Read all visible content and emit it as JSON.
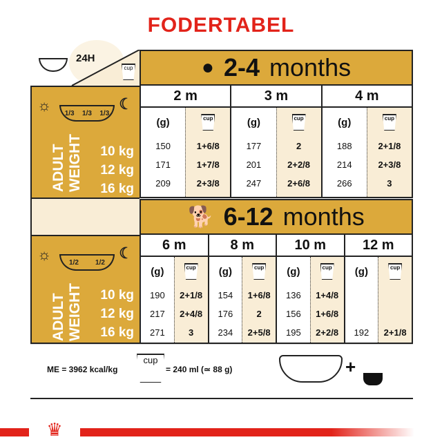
{
  "title": "FODERTABEL",
  "corner": {
    "label": "24H",
    "cup_label": "cup"
  },
  "colors": {
    "gold": "#dca93b",
    "cream": "#f9edd6",
    "red": "#e2231a"
  },
  "sections": [
    {
      "range_num": "2-4",
      "range_word": "months",
      "icon": "puppy-silhouette-icon",
      "portions": [
        "1/3",
        "1/3",
        "1/3"
      ],
      "months": [
        {
          "label": "2 m",
          "g": [
            "150",
            "171",
            "209"
          ],
          "cup": [
            "1+6/8",
            "1+7/8",
            "2+3/8"
          ]
        },
        {
          "label": "3 m",
          "g": [
            "177",
            "201",
            "247"
          ],
          "cup": [
            "2",
            "2+2/8",
            "2+6/8"
          ]
        },
        {
          "label": "4 m",
          "g": [
            "188",
            "214",
            "266"
          ],
          "cup": [
            "2+1/8",
            "2+3/8",
            "3"
          ]
        }
      ]
    },
    {
      "range_num": "6-12",
      "range_word": "months",
      "icon": "dog-silhouette-icon",
      "portions": [
        "1/2",
        "1/2"
      ],
      "months": [
        {
          "label": "6 m",
          "g": [
            "190",
            "217",
            "271"
          ],
          "cup": [
            "2+1/8",
            "2+4/8",
            "3"
          ]
        },
        {
          "label": "8 m",
          "g": [
            "154",
            "176",
            "234"
          ],
          "cup": [
            "1+6/8",
            "2",
            "2+5/8"
          ]
        },
        {
          "label": "10 m",
          "g": [
            "136",
            "156",
            "195"
          ],
          "cup": [
            "1+4/8",
            "1+6/8",
            "2+2/8"
          ]
        },
        {
          "label": "12 m",
          "g": [
            "",
            "",
            "192"
          ],
          "cup": [
            "",
            "",
            "2+1/8"
          ]
        }
      ]
    }
  ],
  "grams_label": "(g)",
  "cup_label": "cup",
  "weight_label": [
    "ADULT",
    "WEIGHT"
  ],
  "weights": [
    "10 kg",
    "12 kg",
    "16 kg"
  ],
  "footer": {
    "me": "ME = 3962 kcal/kg",
    "cup_label": "cup",
    "cup_eq": "= 240 ml (≃ 88 g)",
    "plus": "+"
  }
}
